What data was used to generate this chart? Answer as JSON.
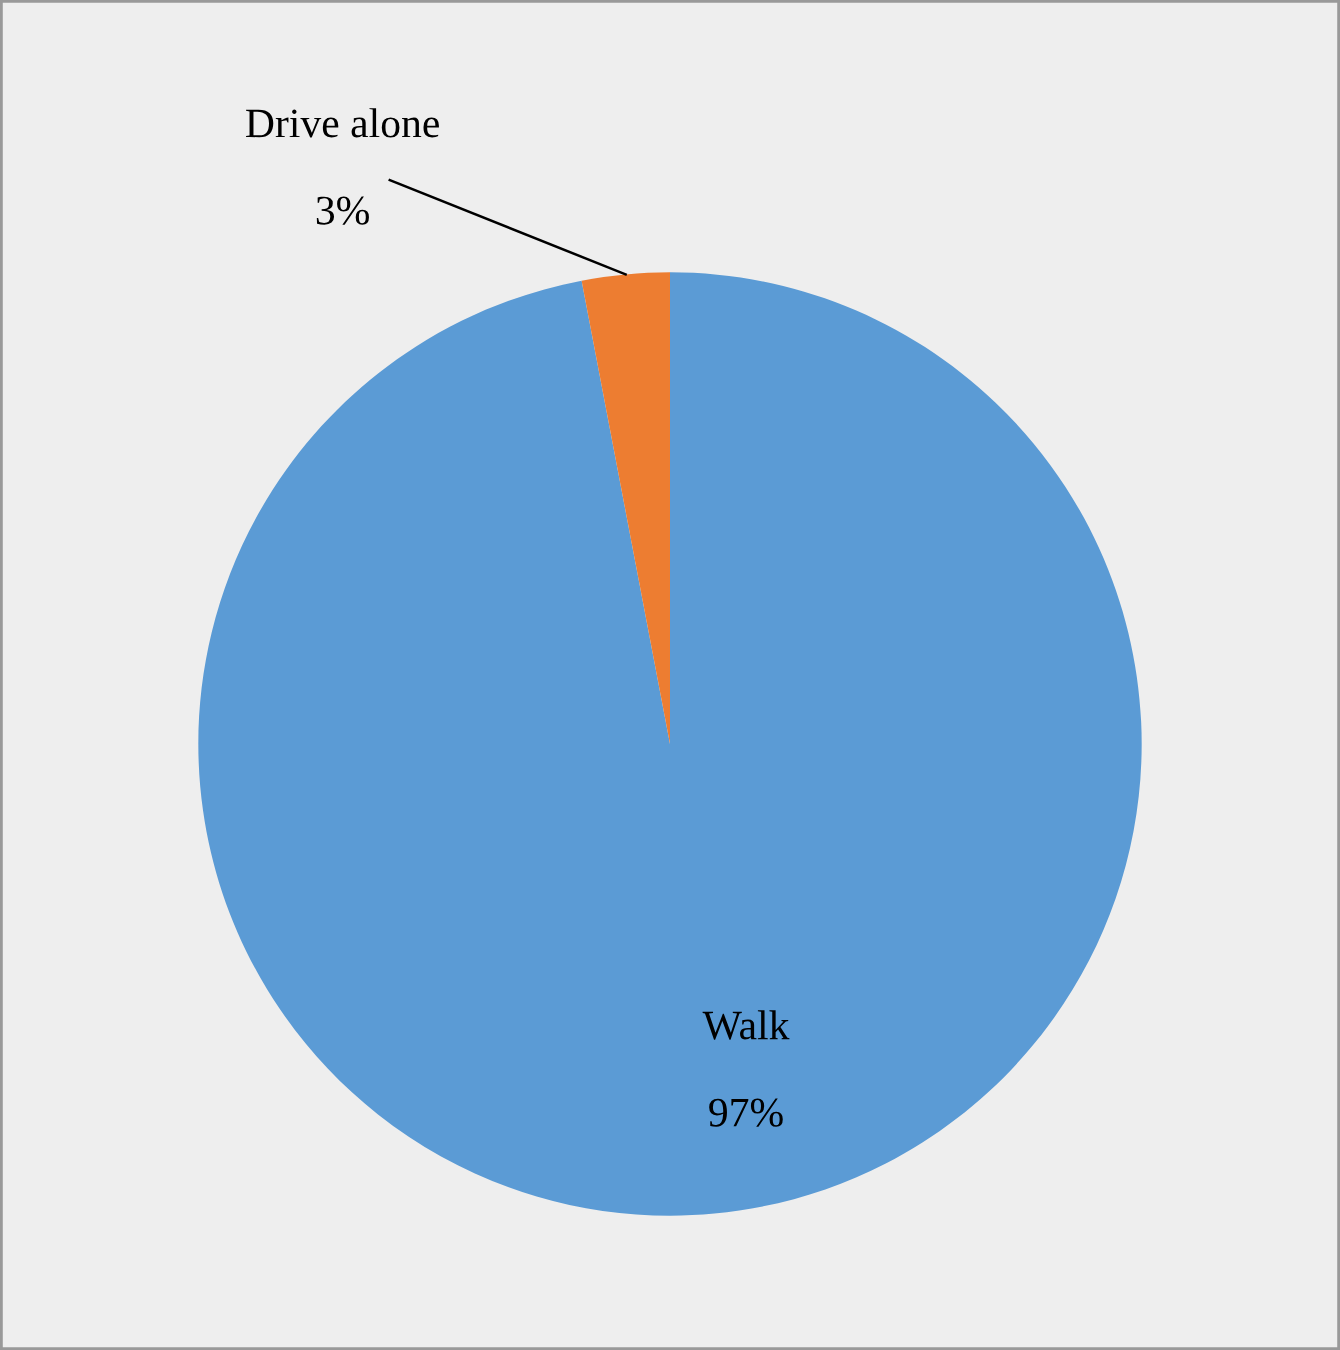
{
  "chart_data": {
    "type": "pie",
    "categories": [
      "Walk",
      "Drive alone"
    ],
    "values": [
      97,
      3
    ],
    "colors": [
      "#5b9bd5",
      "#ed7d31"
    ],
    "value_labels": [
      "97%",
      "3%"
    ],
    "legend": false
  }
}
